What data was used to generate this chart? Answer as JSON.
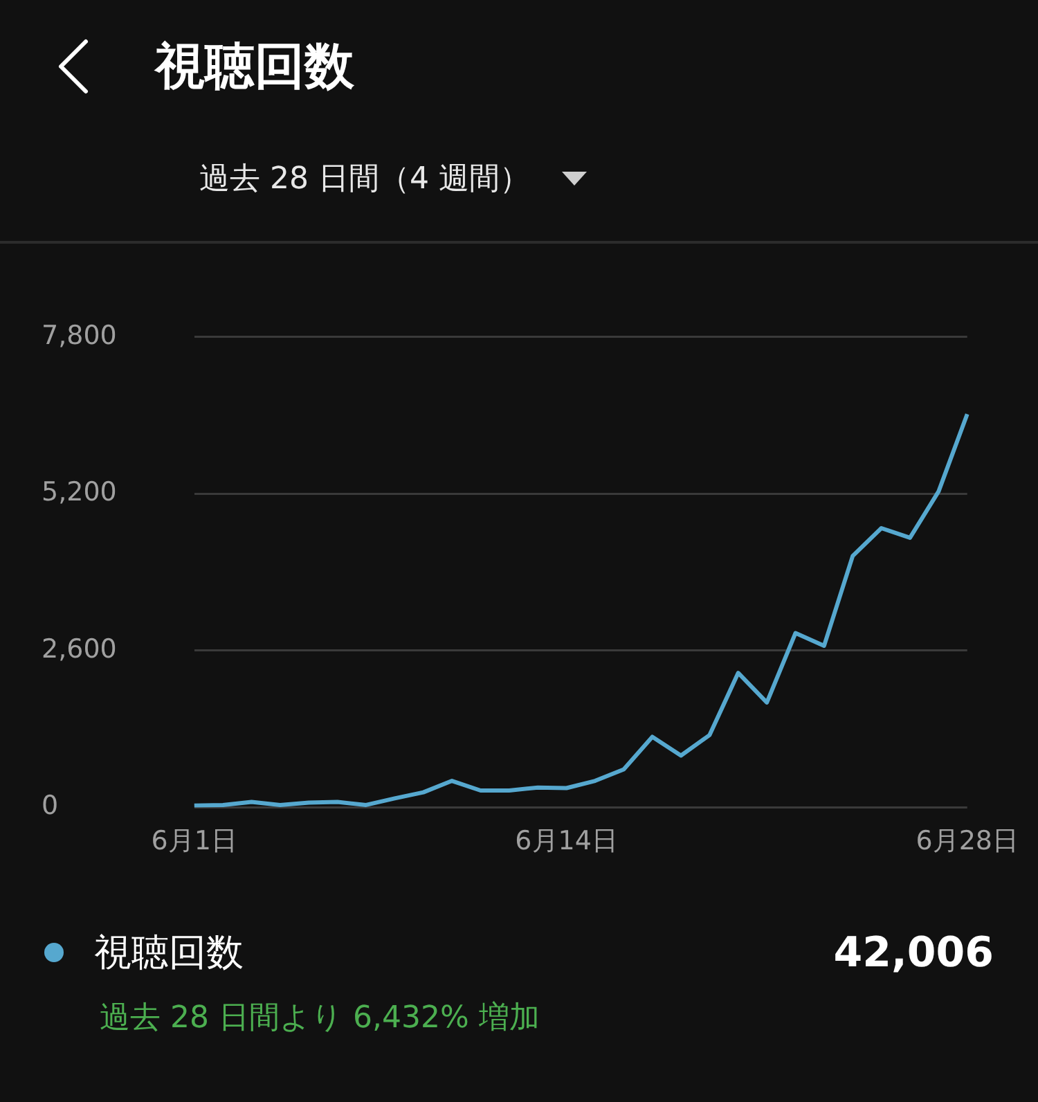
{
  "chart_data": {
    "type": "line",
    "title": "視聴回数",
    "subtitle": "過去 28 日間（4 週間）",
    "categories": [
      "6月1日",
      null,
      null,
      null,
      null,
      null,
      null,
      null,
      null,
      null,
      null,
      null,
      null,
      "6月14日",
      null,
      null,
      null,
      null,
      null,
      null,
      null,
      null,
      null,
      null,
      null,
      null,
      null,
      "6月28日"
    ],
    "series": [
      {
        "name": "視聴回数",
        "color": "#56a8cf",
        "values": [
          30,
          40,
          90,
          40,
          80,
          90,
          40,
          150,
          250,
          440,
          280,
          280,
          330,
          320,
          440,
          630,
          1170,
          860,
          1200,
          2230,
          1740,
          2890,
          2680,
          4170,
          4630,
          4470,
          5240,
          6520
        ]
      }
    ],
    "ylim": [
      0,
      7800
    ],
    "yticks": [
      0,
      {
        "value": 2600,
        "label": "2,600"
      },
      {
        "value": 5200,
        "label": "5,200"
      },
      {
        "value": 7800,
        "label": "7,800"
      }
    ],
    "grid": "y",
    "legend": "bottom",
    "marker": "none",
    "line_style": "solid",
    "annotations": [
      "42,006",
      "過去 28 日間より 6,432% 増加"
    ]
  }
}
